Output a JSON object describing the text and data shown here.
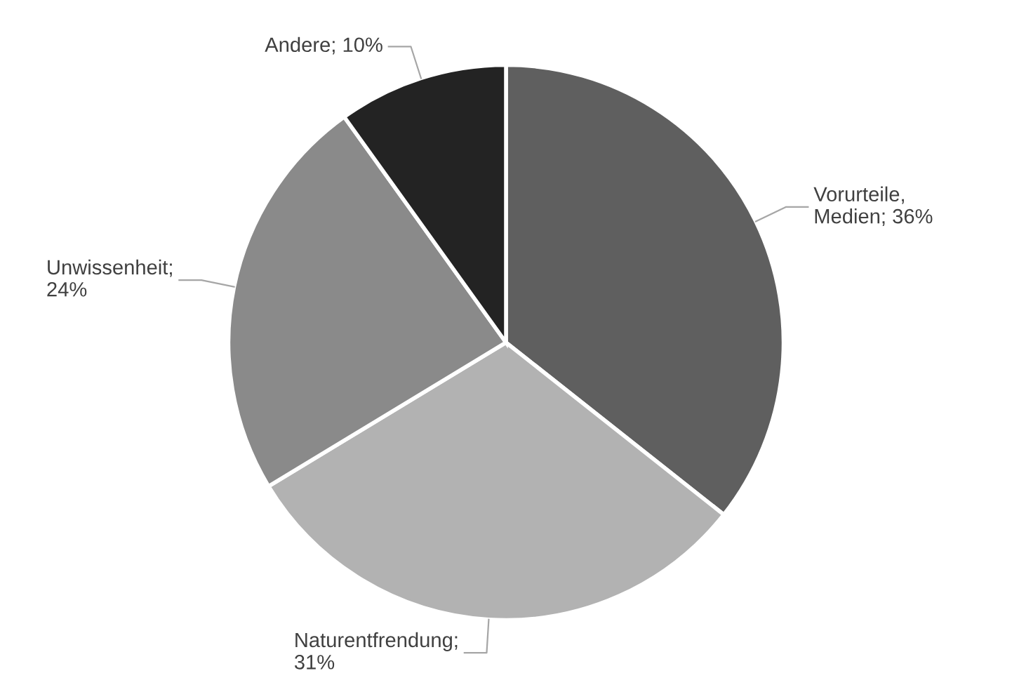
{
  "chart_data": {
    "type": "pie",
    "categories": [
      "Vorurteile, Medien",
      "Naturentfrendung",
      "Unwissenheit",
      "Andere"
    ],
    "values": [
      36,
      31,
      24,
      10
    ],
    "value_labels": [
      "; 36%",
      "; 31%",
      "; 24%",
      "; 10%"
    ],
    "colors": [
      "#5f5f5f",
      "#b2b2b2",
      "#8a8a8a",
      "#232323"
    ],
    "legend": false
  }
}
